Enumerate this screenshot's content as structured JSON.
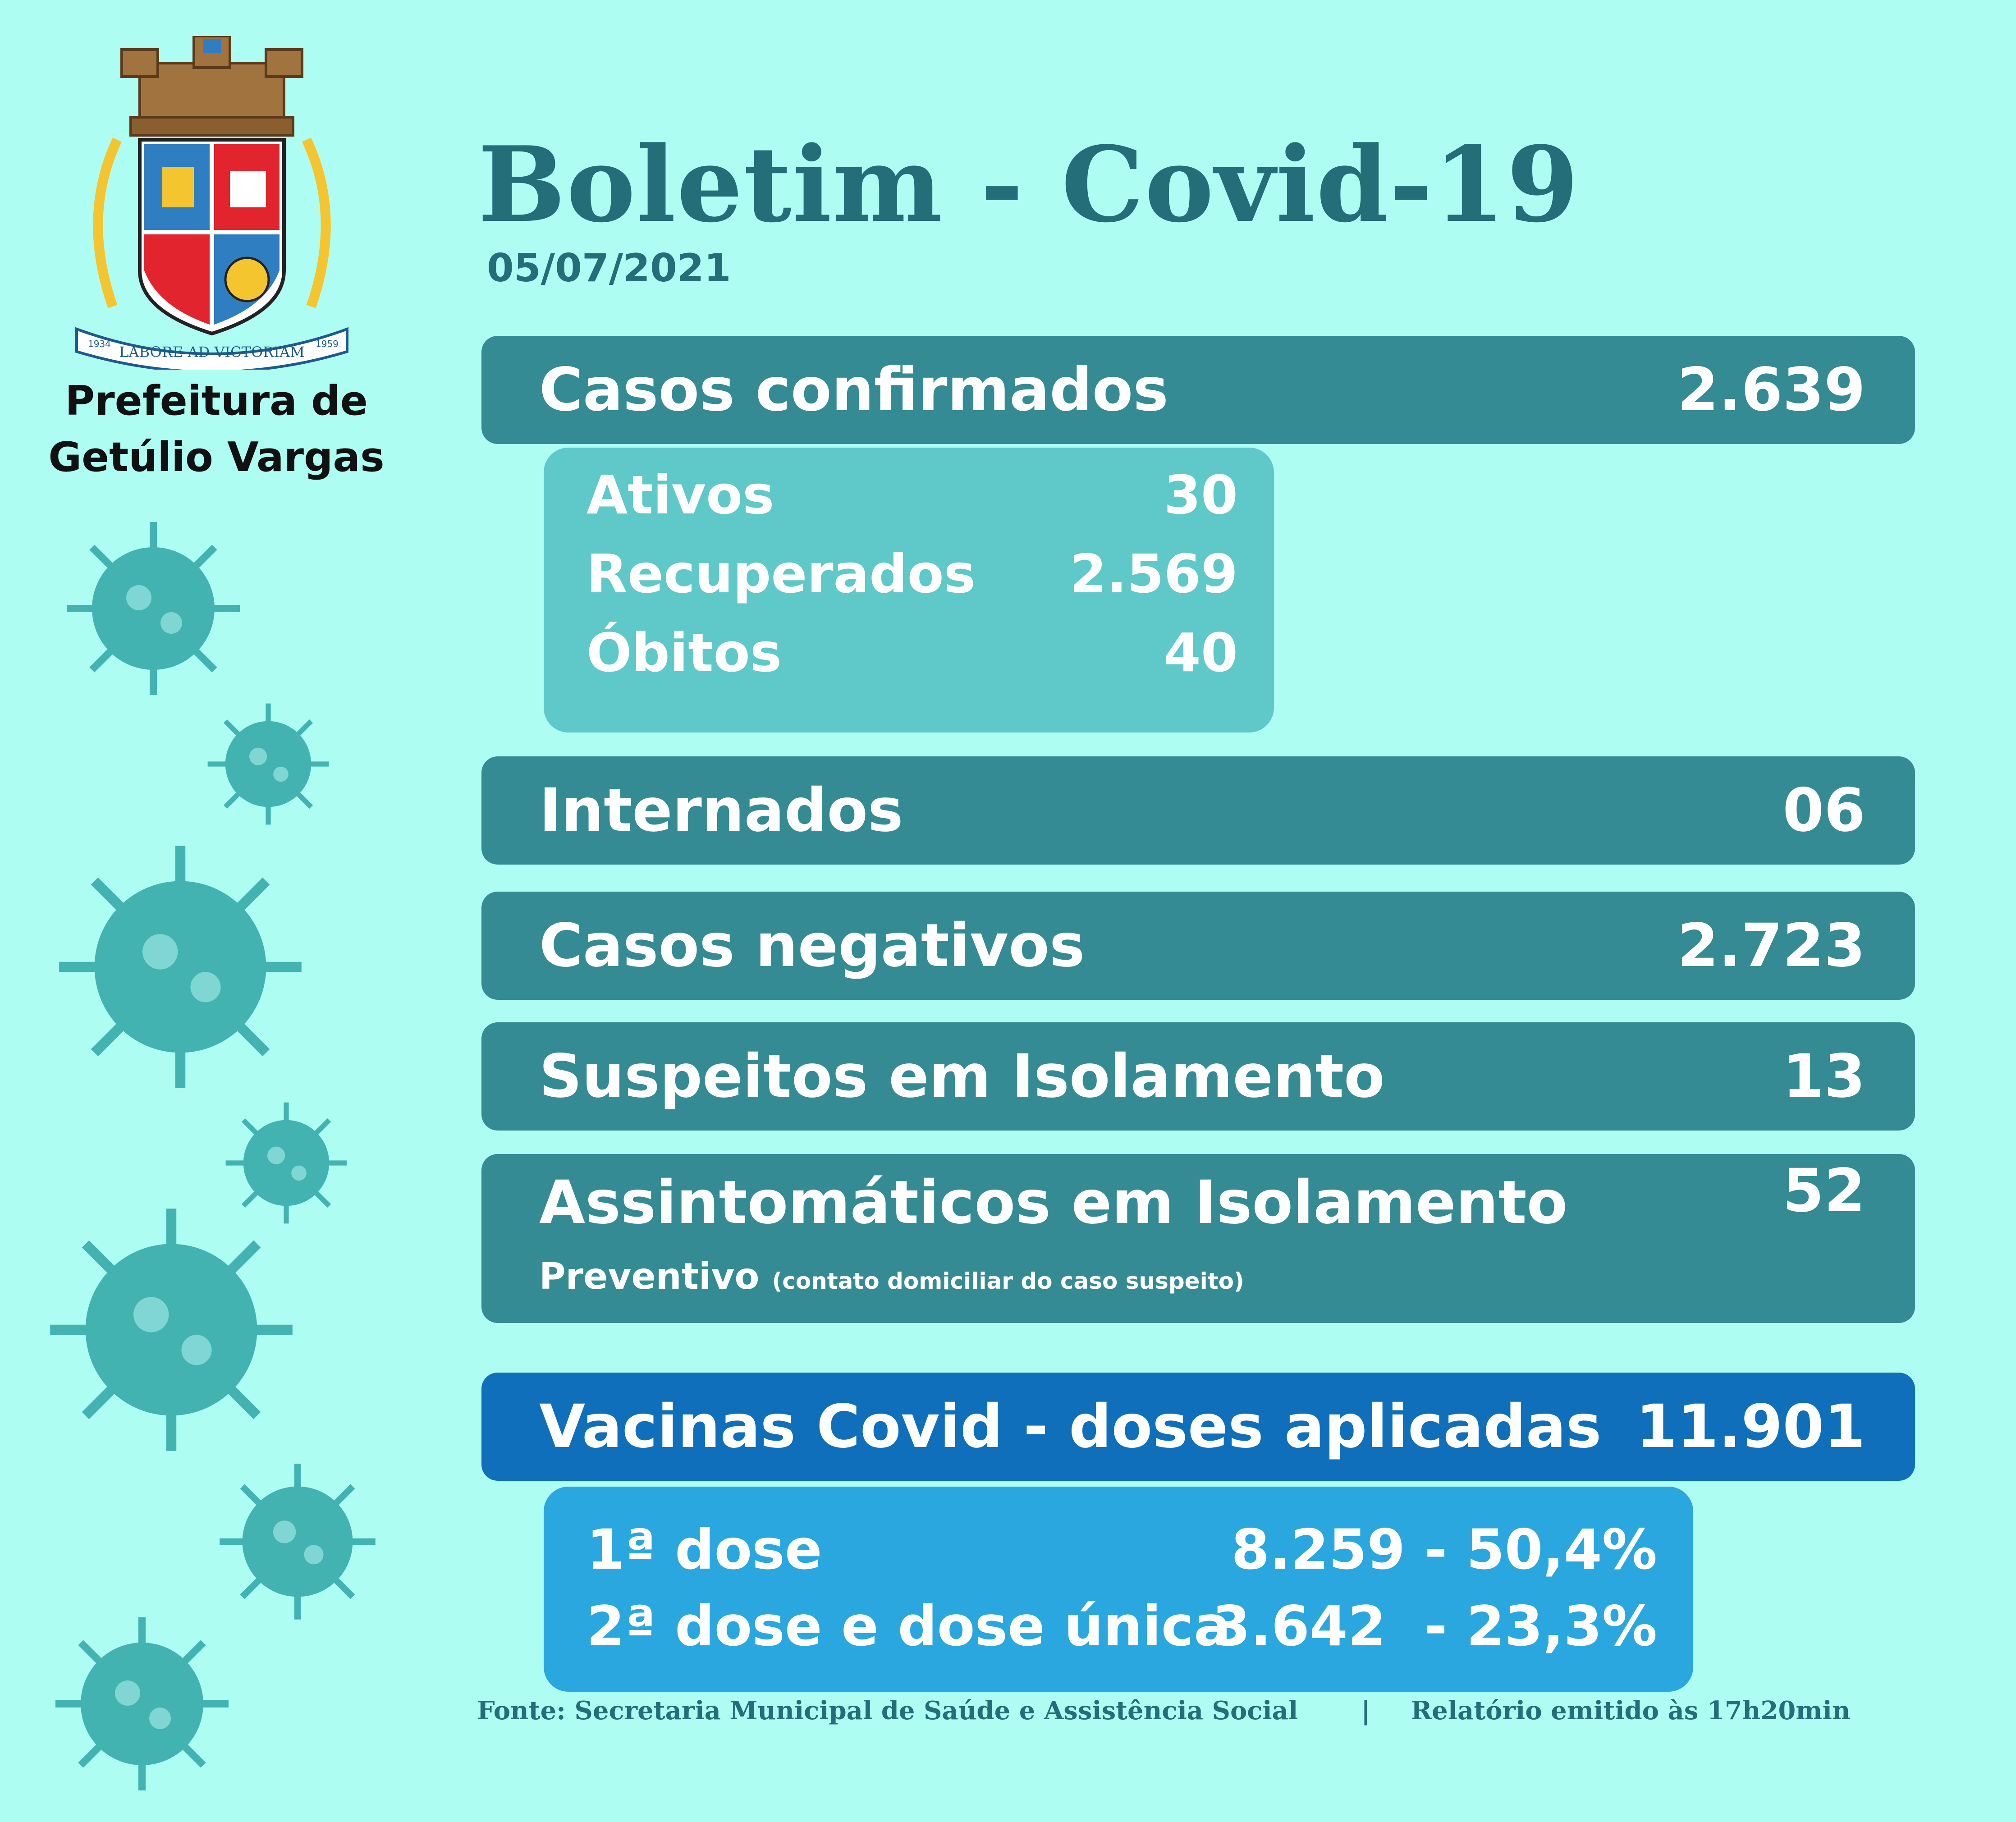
{
  "header": {
    "title": "Boletim - Covid-19",
    "date": "05/07/2021",
    "city_line1": "Prefeitura de",
    "city_line2": "Getúlio Vargas"
  },
  "crest": {
    "motto": "LABORE AD VICTORIAM",
    "year_left": "1934",
    "year_right": "1959",
    "colors": {
      "blue": "#2f7ec1",
      "red": "#e2242e",
      "gold": "#f4c52e",
      "stone": "#a0733f"
    }
  },
  "stats": {
    "confirmados": {
      "label": "Casos confirmados",
      "value": "2.639"
    },
    "ativos": {
      "label": "Ativos",
      "value": "30"
    },
    "recuperados": {
      "label": "Recuperados",
      "value": "2.569"
    },
    "obitos": {
      "label": "Óbitos",
      "value": "40"
    },
    "internados": {
      "label": "Internados",
      "value": "06"
    },
    "negativos": {
      "label": "Casos negativos",
      "value": "2.723"
    },
    "suspeitos": {
      "label": "Suspeitos em Isolamento",
      "value": "13"
    },
    "assintomaticos": {
      "label": "Assintomáticos em Isolamento",
      "sub": "Preventivo",
      "note": "(contato domiciliar do caso suspeito)",
      "value": "52"
    },
    "vacinas": {
      "label": "Vacinas Covid - doses aplicadas",
      "value": "11.901"
    },
    "dose1": {
      "label": "1ª dose",
      "value": "8.259 - 50,4%"
    },
    "dose2": {
      "label": "2ª dose e dose única",
      "value": "3.642  - 23,3%"
    }
  },
  "footer": {
    "source": "Fonte: Secretaria Municipal de Saúde e Assistência Social",
    "separator": "|",
    "report": "Relatório emitido às 17h20min"
  },
  "colors": {
    "background": "#aefdf2",
    "title": "#236e78",
    "bar": "#358b94",
    "subbox_cases": "#5fc8c8",
    "bar_vaccine": "#0f6fbb",
    "subbox_vaccine": "#2aa7df",
    "virus": "#43b3b1"
  }
}
